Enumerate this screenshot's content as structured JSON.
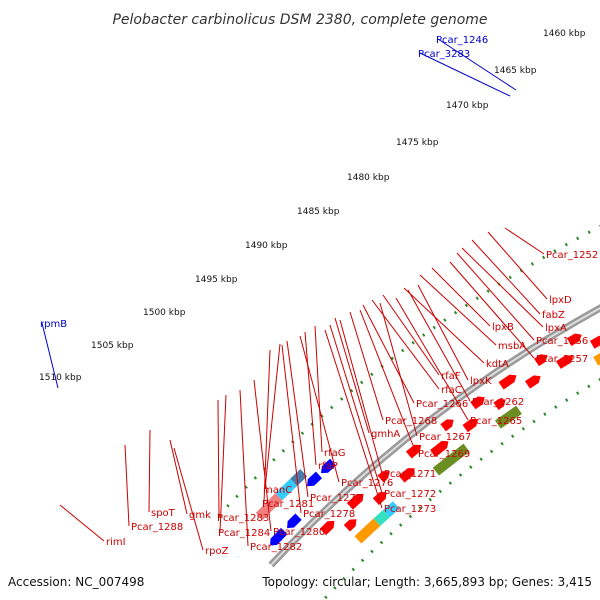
{
  "title": "Pelobacter carbinolicus DSM 2380, complete genome",
  "footer": {
    "accession": "Accession: NC_007498",
    "summary": "Topology: circular; Length: 3,665,893 bp; Genes: 3,415"
  },
  "kbp_ticks": [
    "1460 kbp",
    "1465 kbp",
    "1470 kbp",
    "1475 kbp",
    "1480 kbp",
    "1485 kbp",
    "1490 kbp",
    "1495 kbp",
    "1500 kbp",
    "1505 kbp",
    "1510 kbp"
  ],
  "gene_labels": [
    {
      "text": "Pcar_1246",
      "color": "blue"
    },
    {
      "text": "Pcar_3283",
      "color": "blue"
    },
    {
      "text": "rpmB",
      "color": "blue"
    },
    {
      "text": "Pcar_1252",
      "color": "red"
    },
    {
      "text": "lpxD",
      "color": "red"
    },
    {
      "text": "fabZ",
      "color": "red"
    },
    {
      "text": "lpxA",
      "color": "red"
    },
    {
      "text": "Pcar_1256",
      "color": "red"
    },
    {
      "text": "lpxB",
      "color": "red"
    },
    {
      "text": "msbA",
      "color": "red"
    },
    {
      "text": "Pcar_1257",
      "color": "red"
    },
    {
      "text": "kdtA",
      "color": "red"
    },
    {
      "text": "rfaF",
      "color": "red"
    },
    {
      "text": "lpxK",
      "color": "red"
    },
    {
      "text": "rfaC",
      "color": "red"
    },
    {
      "text": "Pcar_1262",
      "color": "red"
    },
    {
      "text": "Pcar_1266",
      "color": "red"
    },
    {
      "text": "Pcar_1265",
      "color": "red"
    },
    {
      "text": "Pcar_1268",
      "color": "red"
    },
    {
      "text": "Pcar_1267",
      "color": "red"
    },
    {
      "text": "gmhA",
      "color": "red"
    },
    {
      "text": "Pcar_1269",
      "color": "red"
    },
    {
      "text": "rfaG",
      "color": "red"
    },
    {
      "text": "rfaP",
      "color": "red"
    },
    {
      "text": "Pcar_1271",
      "color": "red"
    },
    {
      "text": "Pcar_1276",
      "color": "red"
    },
    {
      "text": "Pcar_1272",
      "color": "red"
    },
    {
      "text": "manC",
      "color": "red"
    },
    {
      "text": "Pcar_1277",
      "color": "red"
    },
    {
      "text": "Pcar_1281",
      "color": "red"
    },
    {
      "text": "Pcar_1278",
      "color": "red"
    },
    {
      "text": "Pcar_1273",
      "color": "red"
    },
    {
      "text": "spoT",
      "color": "red"
    },
    {
      "text": "gmk",
      "color": "red"
    },
    {
      "text": "Pcar_1283",
      "color": "red"
    },
    {
      "text": "Pcar_1280",
      "color": "red"
    },
    {
      "text": "Pcar_1288",
      "color": "red"
    },
    {
      "text": "Pcar_1284",
      "color": "red"
    },
    {
      "text": "rpoZ",
      "color": "red"
    },
    {
      "text": "Pcar_1282",
      "color": "red"
    },
    {
      "text": "rimI",
      "color": "red"
    }
  ],
  "colors": {
    "forward_gene": "#ff0000",
    "reverse_gene": "#0000ff",
    "backbone": "#888888",
    "tick": "#2a8a2a",
    "cog_olive": "#6b8e23",
    "cog_teal": "#33e0c0",
    "cog_salmon": "#f08080",
    "cog_cyan": "#33ccff",
    "cog_orange": "#ff9900",
    "cog_slate": "#4a7aa8",
    "cog_purple": "#7766cc",
    "label_red": "#cc0000",
    "label_blue": "#0000cc"
  }
}
